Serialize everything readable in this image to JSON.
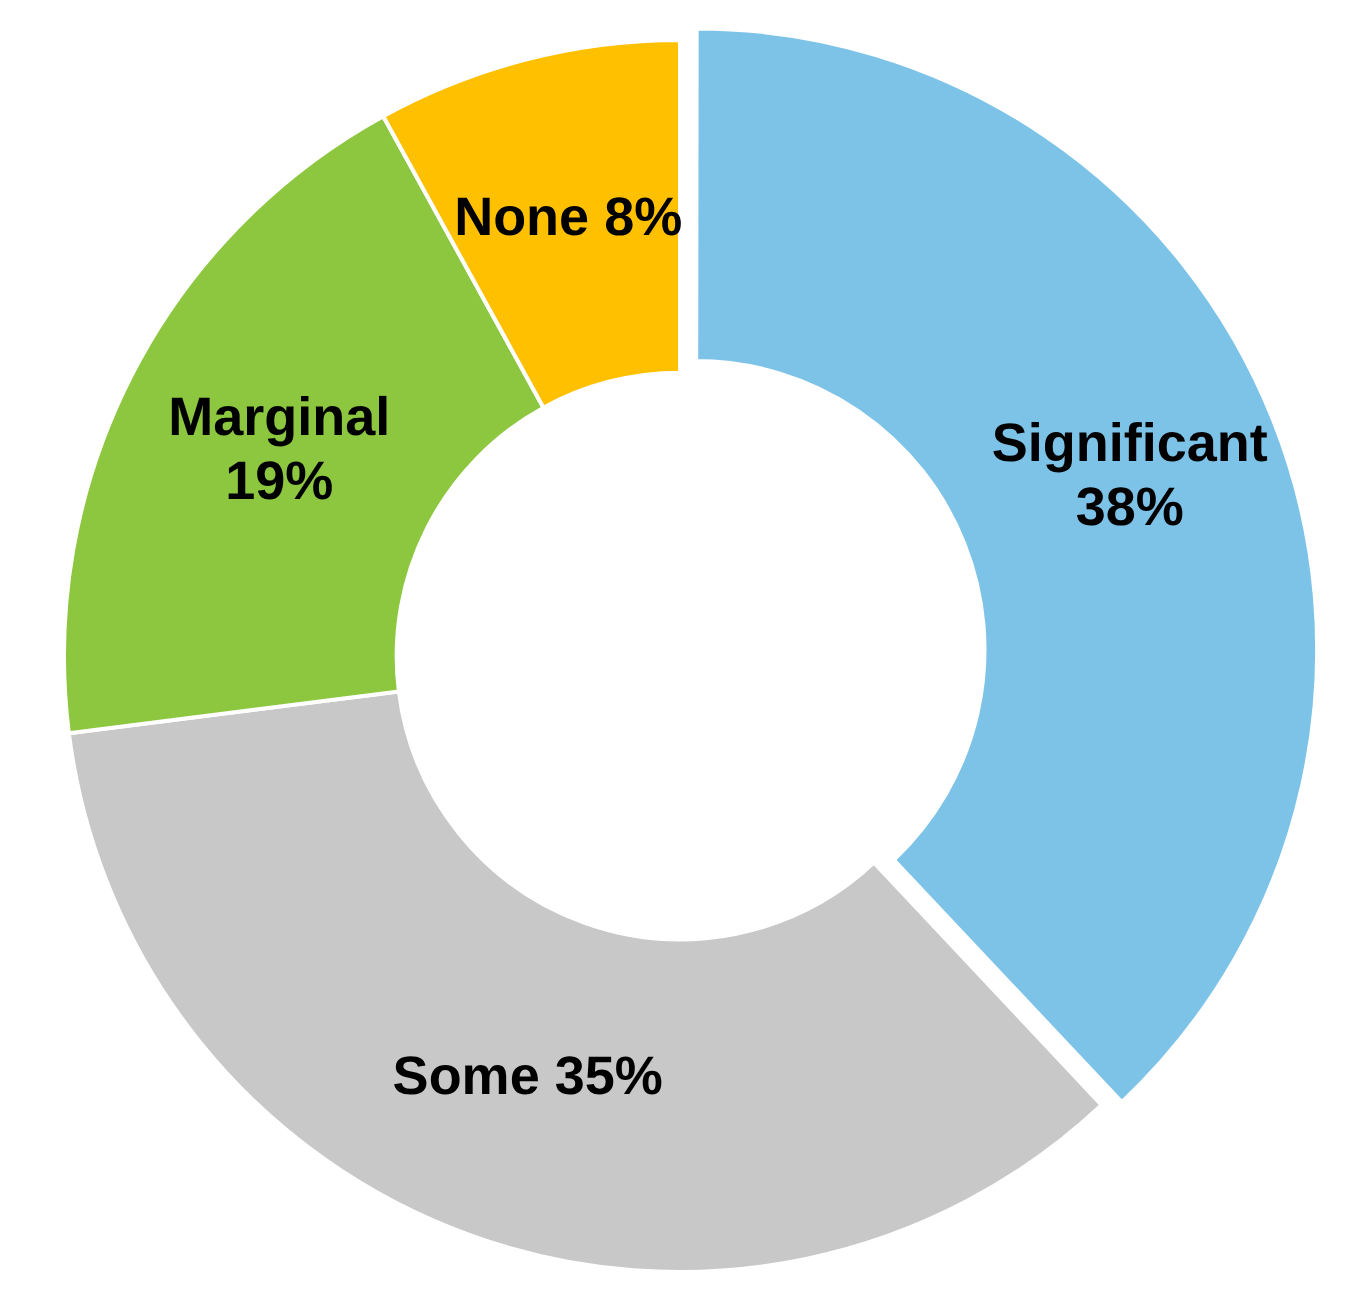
{
  "chart_data": {
    "type": "donut",
    "categories": [
      "Significant",
      "Some",
      "Marginal",
      "None"
    ],
    "values": [
      38,
      35,
      19,
      8
    ],
    "value_labels": [
      "38%",
      "35%",
      "19%",
      "8%"
    ],
    "colors": [
      "#7dc3e8",
      "#c8c8c8",
      "#8dc63f",
      "#ffc000"
    ],
    "legend": false
  }
}
